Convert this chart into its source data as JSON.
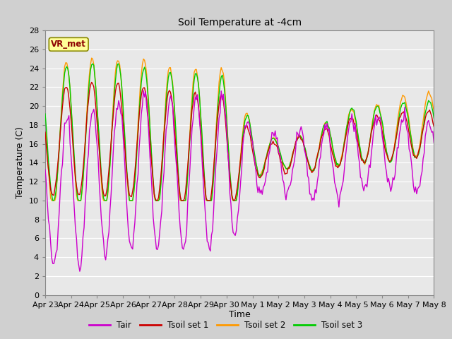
{
  "title": "Soil Temperature at -4cm",
  "xlabel": "Time",
  "ylabel": "Temperature (C)",
  "ylim": [
    0,
    28
  ],
  "yticks": [
    0,
    2,
    4,
    6,
    8,
    10,
    12,
    14,
    16,
    18,
    20,
    22,
    24,
    26,
    28
  ],
  "xtick_labels": [
    "Apr 23",
    "Apr 24",
    "Apr 25",
    "Apr 26",
    "Apr 27",
    "Apr 28",
    "Apr 29",
    "Apr 30",
    "May 1",
    "May 2",
    "May 3",
    "May 4",
    "May 5",
    "May 6",
    "May 7",
    "May 8"
  ],
  "colors": {
    "Tair": "#cc00cc",
    "Tsoil1": "#cc0000",
    "Tsoil2": "#ff9900",
    "Tsoil3": "#00cc00"
  },
  "annotation_text": "VR_met",
  "annotation_color": "#8b0000",
  "annotation_bg": "#ffff99",
  "legend_entries": [
    "Tair",
    "Tsoil set 1",
    "Tsoil set 2",
    "Tsoil set 3"
  ]
}
